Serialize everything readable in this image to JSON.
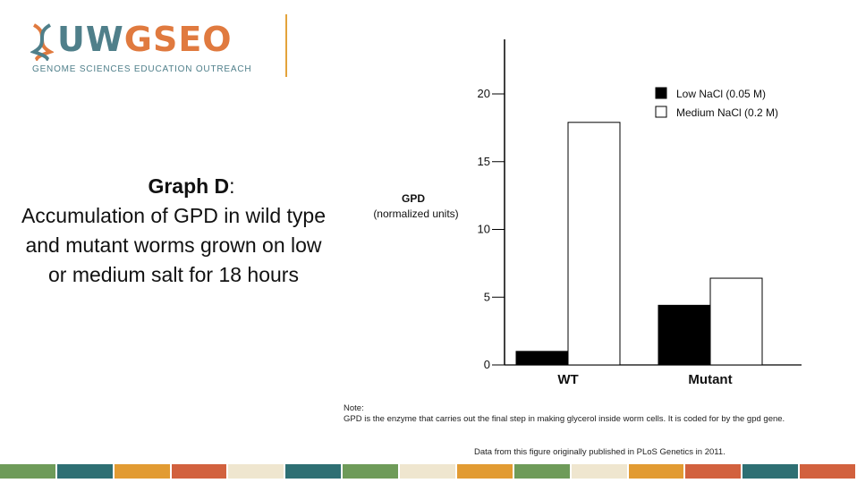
{
  "logo": {
    "name_a": "UW",
    "name_b": "GSEO",
    "subtitle": "GENOME SCIENCES EDUCATION OUTREACH"
  },
  "caption": {
    "title_bold": "Graph D",
    "title_colon": ":",
    "body": "Accumulation of GPD in wild type and mutant worms grown on low or medium salt for 18 hours"
  },
  "chart_data": {
    "type": "bar",
    "categories": [
      "WT",
      "Mutant"
    ],
    "series": [
      {
        "name": "Low NaCl (0.05 M)",
        "values": [
          1,
          4.4
        ],
        "color": "#000000"
      },
      {
        "name": "Medium NaCl (0.2 M)",
        "values": [
          17.9,
          6.4
        ],
        "color": "#ffffff"
      }
    ],
    "ylabel_line1": "GPD",
    "ylabel_line2": "(normalized units)",
    "yticks": [
      0,
      5,
      10,
      15,
      20
    ],
    "ylim": [
      0,
      24
    ],
    "legend_position": "top-right"
  },
  "note": {
    "heading": "Note:",
    "text": "GPD is the enzyme that carries out the final step in making glycerol inside worm cells. It is coded for by the gpd gene."
  },
  "credit": "Data from this figure originally published in PLoS Genetics in 2011.",
  "footer_colors": [
    "#6e9b59",
    "#2e6f73",
    "#e29b32",
    "#d2613e",
    "#efe6cf",
    "#2e6f73",
    "#6e9b59",
    "#efe6cf",
    "#e29b32",
    "#6e9b59",
    "#efe6cf",
    "#e29b32",
    "#d2613e",
    "#2e6f73",
    "#d2613e"
  ]
}
